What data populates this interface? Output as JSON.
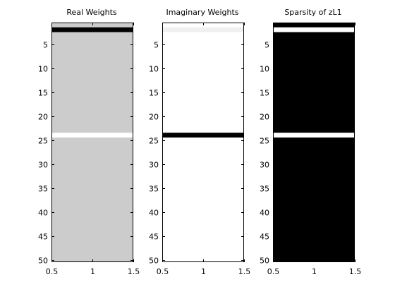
{
  "chart_data": [
    {
      "type": "heatmap",
      "title": "Real Weights",
      "xlim": [
        0.5,
        1.5
      ],
      "ylim": [
        0.5,
        50.5
      ],
      "y_reversed": true,
      "xticks": [
        0.5,
        1,
        1.5
      ],
      "yticks": [
        5,
        10,
        15,
        20,
        25,
        30,
        35,
        40,
        45,
        50
      ],
      "colormap": "gray",
      "background_color": "#cccccc",
      "rows": [
        {
          "row": 2,
          "color": "#000000"
        },
        {
          "row": 24,
          "color": "#ffffff"
        }
      ]
    },
    {
      "type": "heatmap",
      "title": "Imaginary Weights",
      "xlim": [
        0.5,
        1.5
      ],
      "ylim": [
        0.5,
        50.5
      ],
      "y_reversed": true,
      "xticks": [
        0.5,
        1,
        1.5
      ],
      "yticks": [
        5,
        10,
        15,
        20,
        25,
        30,
        35,
        40,
        45,
        50
      ],
      "colormap": "gray",
      "background_color": "#ffffff",
      "rows": [
        {
          "row": 2,
          "color": "#f0f0f0"
        },
        {
          "row": 24,
          "color": "#000000"
        }
      ]
    },
    {
      "type": "heatmap",
      "title": "Sparsity of zL1",
      "xlim": [
        0.5,
        1.5
      ],
      "ylim": [
        0.5,
        50.5
      ],
      "y_reversed": true,
      "xticks": [
        0.5,
        1,
        1.5
      ],
      "yticks": [
        5,
        10,
        15,
        20,
        25,
        30,
        35,
        40,
        45,
        50
      ],
      "colormap": "gray",
      "background_color": "#000000",
      "rows": [
        {
          "row": 2,
          "color": "#ffffff"
        },
        {
          "row": 24,
          "color": "#ffffff"
        }
      ]
    }
  ]
}
